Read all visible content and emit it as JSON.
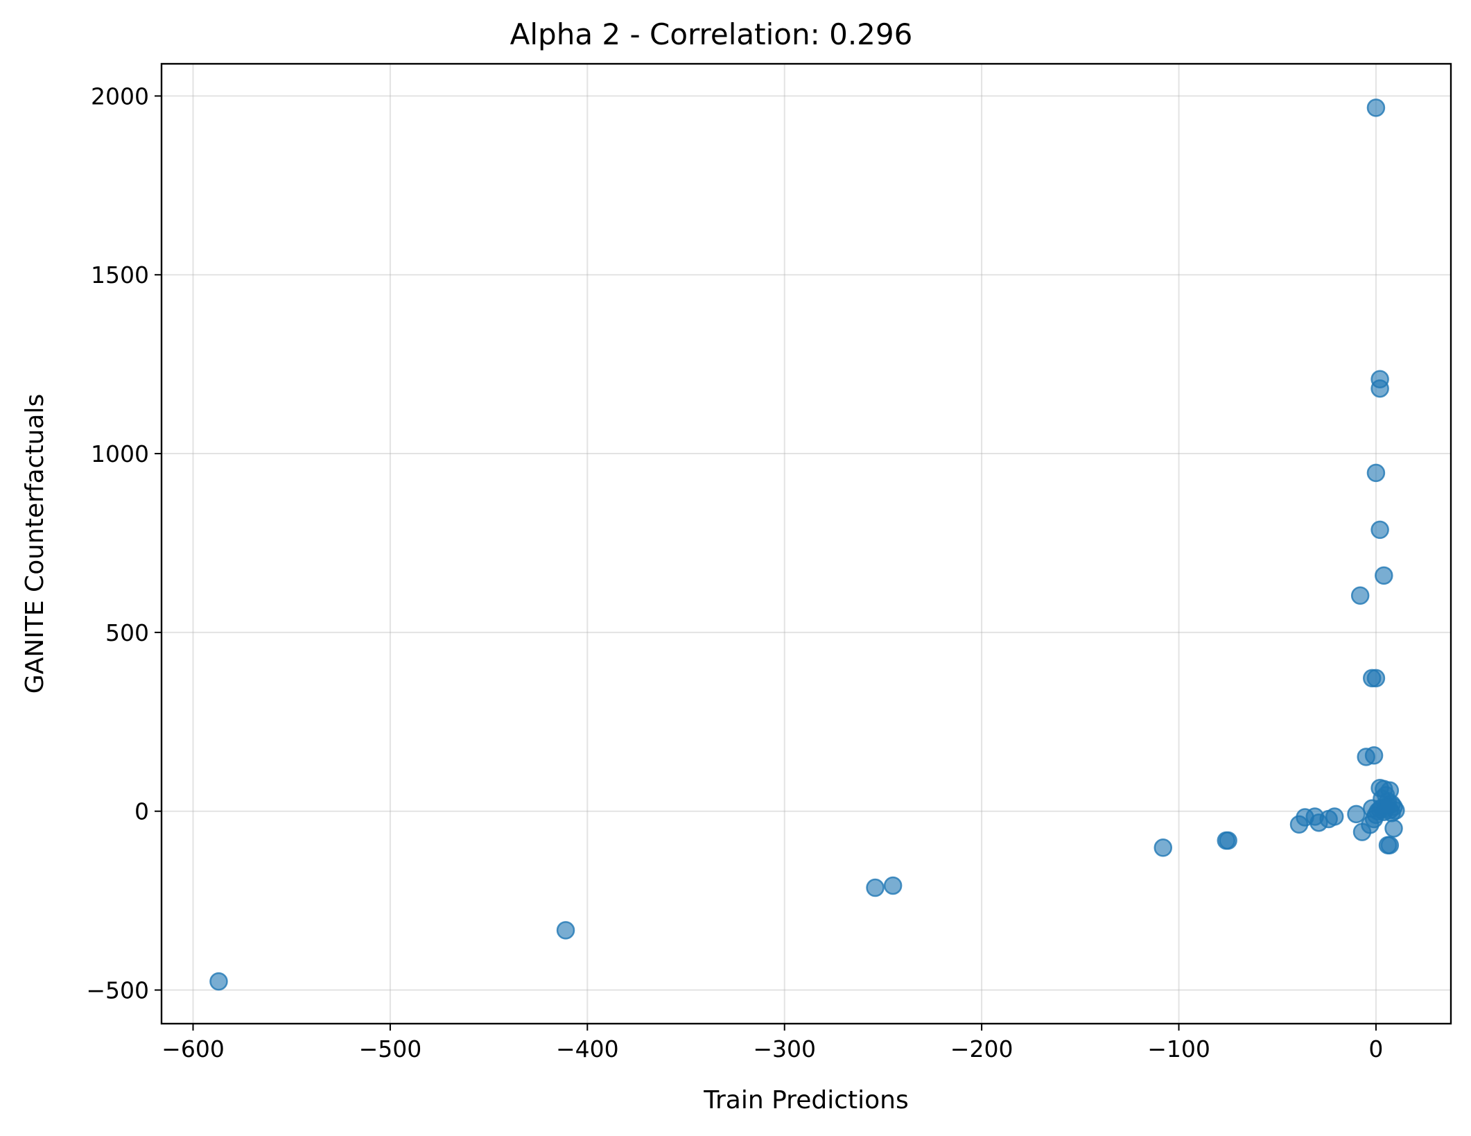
{
  "chart_data": {
    "type": "scatter",
    "title": "Alpha 2 - Correlation: 0.296",
    "xlabel": "Train Predictions",
    "ylabel": "GANITE Counterfactuals",
    "xlim": [
      -616,
      38
    ],
    "ylim": [
      -594,
      2090
    ],
    "xticks": [
      -600,
      -500,
      -400,
      -300,
      -200,
      -100,
      0
    ],
    "yticks": [
      -500,
      0,
      500,
      1000,
      1500,
      2000
    ],
    "xtick_labels": [
      "−600",
      "−500",
      "−400",
      "−300",
      "−200",
      "−100",
      "0"
    ],
    "ytick_labels": [
      "−500",
      "0",
      "500",
      "1000",
      "1500",
      "2000"
    ],
    "grid": true,
    "marker_color": "#1f77b4",
    "marker_alpha": 0.6,
    "points": [
      {
        "x": -587,
        "y": -476
      },
      {
        "x": -411,
        "y": -333
      },
      {
        "x": -254,
        "y": -214
      },
      {
        "x": -245,
        "y": -208
      },
      {
        "x": -108,
        "y": -102
      },
      {
        "x": -76,
        "y": -82
      },
      {
        "x": -75,
        "y": -82
      },
      {
        "x": -39,
        "y": -37
      },
      {
        "x": -36,
        "y": -17
      },
      {
        "x": -31,
        "y": -15
      },
      {
        "x": -29,
        "y": -32
      },
      {
        "x": -24,
        "y": -22
      },
      {
        "x": -21,
        "y": -15
      },
      {
        "x": -10,
        "y": -8
      },
      {
        "x": -7,
        "y": -58
      },
      {
        "x": -3,
        "y": -38
      },
      {
        "x": -1,
        "y": -22
      },
      {
        "x": 0,
        "y": 1967
      },
      {
        "x": 2,
        "y": 1208
      },
      {
        "x": 2,
        "y": 1182
      },
      {
        "x": 0,
        "y": 946
      },
      {
        "x": 2,
        "y": 787
      },
      {
        "x": 4,
        "y": 659
      },
      {
        "x": -8,
        "y": 603
      },
      {
        "x": -2,
        "y": 372
      },
      {
        "x": 0,
        "y": 372
      },
      {
        "x": -5,
        "y": 152
      },
      {
        "x": -1,
        "y": 156
      },
      {
        "x": 2,
        "y": 65
      },
      {
        "x": 4,
        "y": 62
      },
      {
        "x": 5,
        "y": 45
      },
      {
        "x": 7,
        "y": 58
      },
      {
        "x": 3,
        "y": 35
      },
      {
        "x": 6,
        "y": 28
      },
      {
        "x": 8,
        "y": 20
      },
      {
        "x": 9,
        "y": 12
      },
      {
        "x": 5,
        "y": 8
      },
      {
        "x": 2,
        "y": 5
      },
      {
        "x": 7,
        "y": 3
      },
      {
        "x": 10,
        "y": 2
      },
      {
        "x": 4,
        "y": -2
      },
      {
        "x": 8,
        "y": -5
      },
      {
        "x": 1,
        "y": 0
      },
      {
        "x": 3,
        "y": 10
      },
      {
        "x": 6,
        "y": 15
      },
      {
        "x": 9,
        "y": -48
      },
      {
        "x": 6,
        "y": -95
      },
      {
        "x": 7,
        "y": -95
      },
      {
        "x": -2,
        "y": 8
      },
      {
        "x": 0,
        "y": -10
      }
    ]
  }
}
